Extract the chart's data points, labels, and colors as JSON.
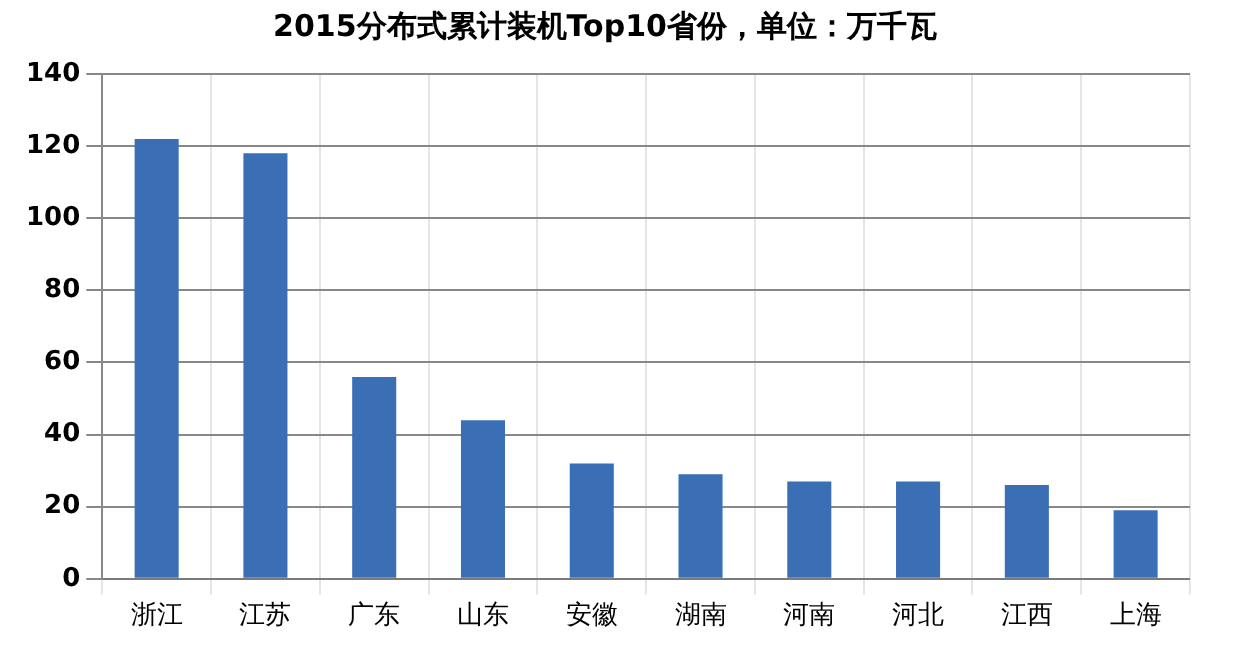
{
  "chart_data": {
    "type": "bar",
    "title": "2015分布式累计装机Top10省份，单位：万千瓦",
    "categories": [
      "浙江",
      "江苏",
      "广东",
      "山东",
      "安徽",
      "湖南",
      "河南",
      "河北",
      "江西",
      "上海"
    ],
    "values": [
      122,
      118,
      56,
      44,
      32,
      29,
      27,
      27,
      26,
      19
    ],
    "color": "#3a6fb5",
    "ylim": [
      0,
      140
    ],
    "yticks": [
      0,
      20,
      40,
      60,
      80,
      100,
      120,
      140
    ],
    "grid": true
  }
}
